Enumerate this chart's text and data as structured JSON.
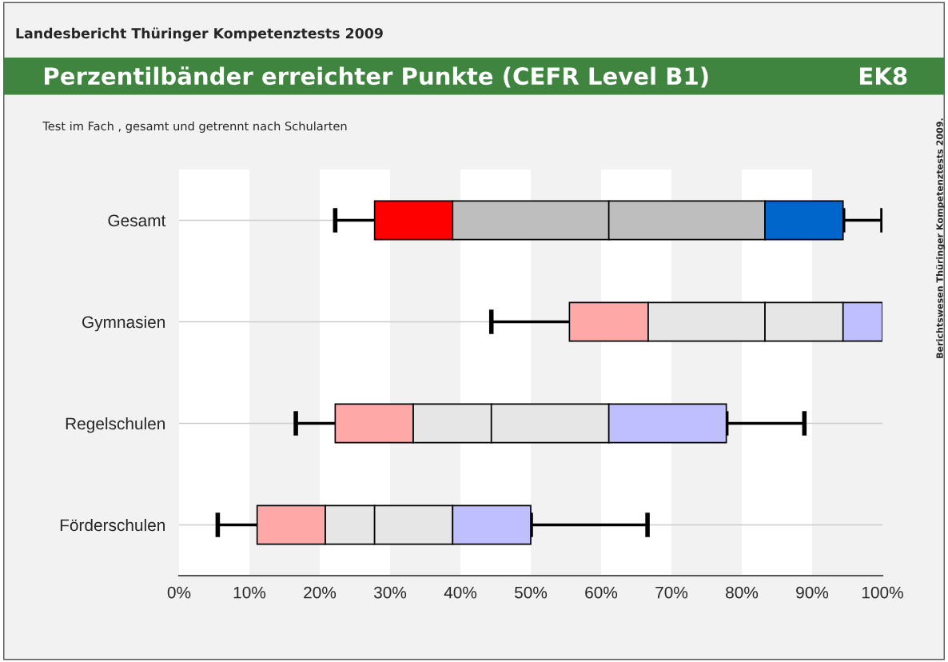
{
  "chart_data": {
    "type": "bar",
    "orientation": "horizontal",
    "title": "Perzentilbänder erreichter Punkte (CEFR Level B1)",
    "subtitle": "Test im Fach , gesamt und getrennt nach Schularten",
    "annotations": [
      "Landesbericht Thüringer Kompetenztests 2009",
      "EK8",
      "Berichtswesen Thüringer Kompetenztests 2009."
    ],
    "categories": [
      "Gesamt",
      "Gymnasien",
      "Regelschulen",
      "Förderschulen"
    ],
    "series": [
      {
        "colors": [
          "#ff0000",
          "#ffa8a8",
          "#ffa8a8",
          "#ffa8a8"
        ],
        "base": [
          27.8,
          55.5,
          22.2,
          11.1
        ],
        "values": [
          11.1,
          11.2,
          11.1,
          9.7
        ],
        "errors": [
          [
            22.2,
            38.9
          ],
          [
            44.4,
            66.7
          ],
          [
            16.6,
            33.3
          ],
          [
            5.5,
            20.8
          ]
        ]
      },
      {
        "colors": [
          "#bebebe",
          "#e6e6e6",
          "#e6e6e6",
          "#e6e6e6"
        ],
        "base": [
          38.9,
          66.7,
          33.3,
          20.8
        ],
        "values": [
          22.2,
          16.6,
          11.1,
          7.0
        ]
      },
      {
        "colors": [
          "#bebebe",
          "#e6e6e6",
          "#e6e6e6",
          "#e6e6e6"
        ],
        "base": [
          61.1,
          83.3,
          44.4,
          27.8
        ],
        "values": [
          22.2,
          11.1,
          16.7,
          11.1
        ]
      },
      {
        "colors": [
          "#0066cc",
          "#bfbfff",
          "#bfbfff",
          "#bfbfff"
        ],
        "base": [
          83.3,
          94.4,
          61.1,
          38.9
        ],
        "values": [
          11.1,
          5.6,
          16.7,
          11.1
        ],
        "errors": [
          [
            94.4,
            100
          ],
          [
            100,
            100
          ],
          [
            77.8,
            88.9
          ],
          [
            50.0,
            66.6
          ]
        ]
      }
    ],
    "xlim": [
      0,
      100
    ],
    "xticks": [
      {
        "value": 0,
        "label": "0%"
      },
      {
        "value": 10,
        "label": "10%"
      },
      {
        "value": 20,
        "label": "20%"
      },
      {
        "value": 30,
        "label": "30%"
      },
      {
        "value": 40,
        "label": "40%"
      },
      {
        "value": 50,
        "label": "50%"
      },
      {
        "value": 60,
        "label": "60%"
      },
      {
        "value": 70,
        "label": "70%"
      },
      {
        "value": 80,
        "label": "80%"
      },
      {
        "value": 90,
        "label": "90%"
      },
      {
        "value": 100,
        "label": "100%"
      }
    ],
    "bands": [
      {
        "axis": "x",
        "from": 0,
        "to": 10,
        "color": "#ffffff"
      },
      {
        "axis": "x",
        "from": 20,
        "to": 30,
        "color": "#ffffff"
      },
      {
        "axis": "x",
        "from": 40,
        "to": 50,
        "color": "#ffffff"
      },
      {
        "axis": "x",
        "from": 60,
        "to": 70,
        "color": "#ffffff"
      },
      {
        "axis": "x",
        "from": 80,
        "to": 90,
        "color": "#ffffff"
      }
    ],
    "grid": "y"
  }
}
